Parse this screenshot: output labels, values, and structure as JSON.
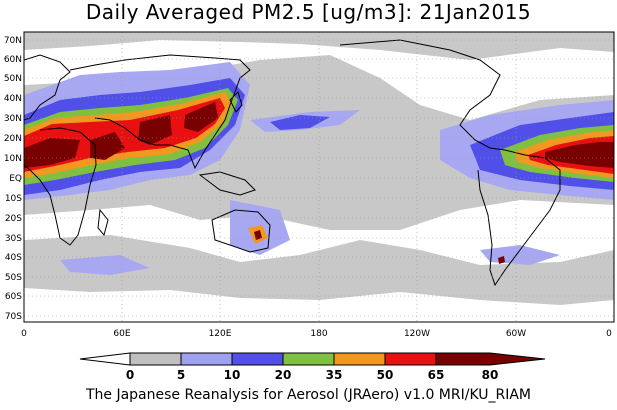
{
  "title": "Daily Averaged PM2.5 [ug/m3]: 21Jan2015",
  "footer": "The Japanese Reanalysis for Aerosol (JRAero) v1.0 MRI/KU_RIAM",
  "lat_labels": [
    "70N",
    "60N",
    "50N",
    "40N",
    "30N",
    "20N",
    "10N",
    "EQ",
    "10S",
    "20S",
    "30S",
    "40S",
    "50S",
    "60S",
    "70S"
  ],
  "lon_labels": [
    "0",
    "60E",
    "120E",
    "180",
    "120W",
    "60W",
    "0"
  ],
  "colorbar": {
    "levels": [
      "0",
      "5",
      "10",
      "20",
      "35",
      "50",
      "65",
      "80"
    ],
    "colors": [
      "#ffffff",
      "#c0c0c0",
      "#a0a0f0",
      "#5050e8",
      "#80c040",
      "#f09820",
      "#e81010",
      "#780000"
    ]
  }
}
